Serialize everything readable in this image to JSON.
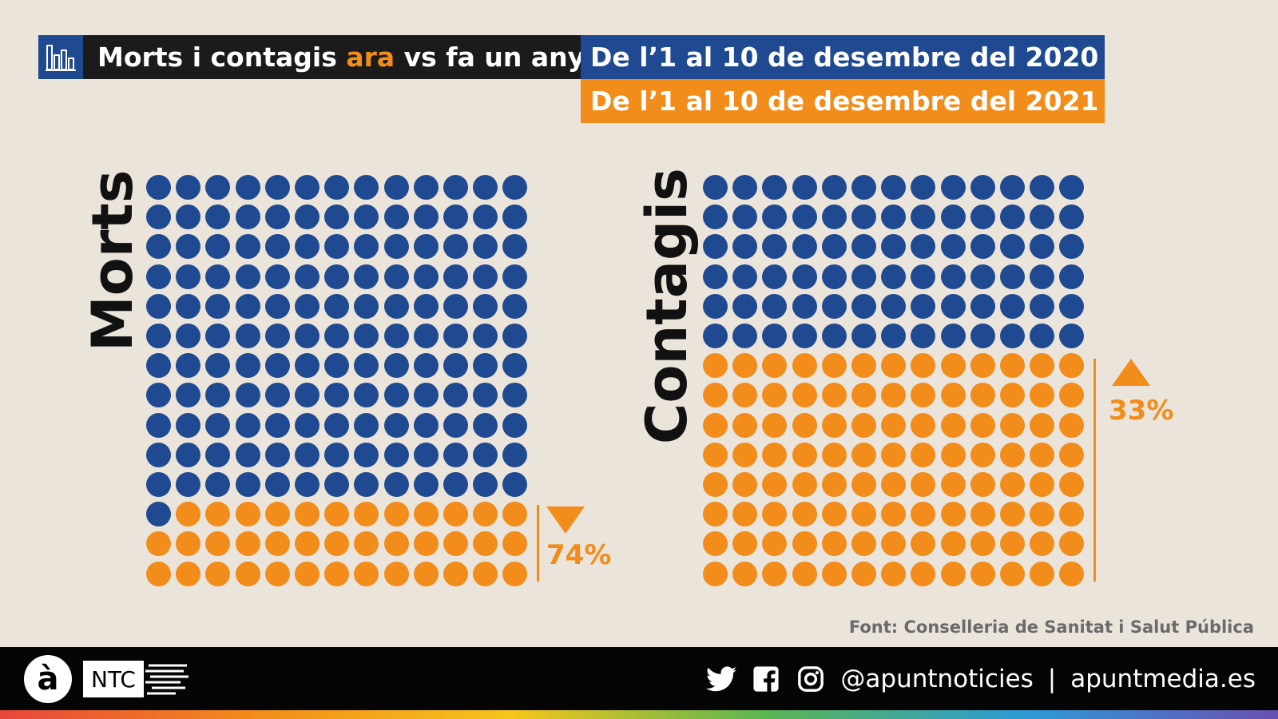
{
  "title": {
    "prefix": "Morts i contagis ",
    "highlight": "ara",
    "suffix": " vs fa un any"
  },
  "legend": {
    "y2020": "De l’1 al 10 de desembre del 2020",
    "y2021": "De l’1 al 10 de desembre del 2021"
  },
  "colors": {
    "blue": "#1f4a92",
    "orange": "#f28c1a",
    "background": "#ebe4da"
  },
  "chart_data": [
    {
      "type": "waffle",
      "title": "Morts",
      "rows": 14,
      "cols": 13,
      "series": [
        {
          "name": "De l’1 al 10 de desembre del 2020",
          "color": "#1f4a92",
          "dots": 144
        },
        {
          "name": "De l’1 al 10 de desembre del 2021",
          "color": "#f28c1a",
          "dots": 38
        }
      ],
      "change": {
        "direction": "down",
        "label": "74%"
      }
    },
    {
      "type": "waffle",
      "title": "Contagis",
      "rows": 14,
      "cols": 13,
      "series": [
        {
          "name": "De l’1 al 10 de desembre del 2020",
          "color": "#1f4a92",
          "dots": 78
        },
        {
          "name": "De l’1 al 10 de desembre del 2021",
          "color": "#f28c1a",
          "dots": 104
        }
      ],
      "change": {
        "direction": "up",
        "label": "33%"
      }
    }
  ],
  "source": "Font: Conselleria de Sanitat i Salut Pública",
  "footer": {
    "logo_letter": "à",
    "logo_ntc": "NTC",
    "handle": "@apuntnoticies",
    "separator": "|",
    "website": "apuntmedia.es",
    "icons": [
      "twitter-icon",
      "facebook-icon",
      "instagram-icon"
    ]
  }
}
